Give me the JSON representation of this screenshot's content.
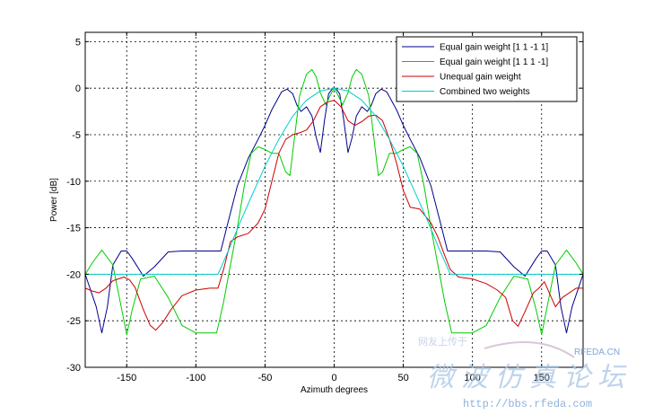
{
  "chart_data": {
    "type": "line",
    "title": "",
    "xlabel": "Azimuth degrees",
    "ylabel": "Power [dB]",
    "xlim": [
      -180,
      180
    ],
    "ylim": [
      -30,
      6
    ],
    "xticks": [
      -150,
      -100,
      -50,
      0,
      50,
      100,
      150
    ],
    "yticks": [
      5,
      0,
      -5,
      -10,
      -15,
      -20,
      -25,
      -30
    ],
    "grid": true,
    "legend_position": "top-right",
    "series": [
      {
        "name": "Equal gain weight [1 1 -1 1]",
        "color": "#00008b",
        "x": [
          -180,
          -172,
          -168,
          -164,
          -160,
          -154,
          -150,
          -146,
          -138,
          -130,
          -120,
          -110,
          -100,
          -90,
          -82,
          -76,
          -70,
          -62,
          -55,
          -50,
          -45,
          -38,
          -34,
          -30,
          -27,
          -24,
          -20,
          -16,
          -13,
          -10,
          -7,
          -4,
          -1,
          0,
          1,
          4,
          7,
          10,
          13,
          16,
          20,
          24,
          27,
          30,
          34,
          38,
          45,
          50,
          55,
          62,
          70,
          76,
          82,
          90,
          100,
          110,
          120,
          130,
          138,
          146,
          150,
          154,
          160,
          164,
          168,
          172,
          180
        ],
        "y": [
          -20,
          -23.5,
          -26.3,
          -23.5,
          -19,
          -17.5,
          -17.5,
          -18.3,
          -20.2,
          -19.2,
          -17.6,
          -17.5,
          -17.5,
          -17.5,
          -17.5,
          -14,
          -10.5,
          -7.5,
          -5.5,
          -4,
          -2.3,
          -0.4,
          -0.1,
          -0.6,
          -1.8,
          -2.5,
          -2,
          -3,
          -5.3,
          -6.9,
          -3.5,
          -0.6,
          0,
          0,
          0,
          -0.6,
          -3.5,
          -6.9,
          -5.3,
          -3,
          -2,
          -2.5,
          -1.8,
          -0.6,
          -0.1,
          -0.4,
          -2.3,
          -4,
          -5.5,
          -7.5,
          -10.5,
          -14,
          -17.5,
          -17.5,
          -17.5,
          -17.5,
          -17.6,
          -19.2,
          -20.2,
          -18.3,
          -17.5,
          -17.5,
          -19,
          -23.5,
          -26.3,
          -23.5,
          -20
        ]
      },
      {
        "name": "Equal gain weight [1 1 1 -1]",
        "color": "#00cc00",
        "x": [
          -180,
          -175,
          -168,
          -160,
          -154,
          -150,
          -146,
          -140,
          -130,
          -120,
          -110,
          -100,
          -90,
          -85,
          -80,
          -75,
          -70,
          -65,
          -60,
          -55,
          -50,
          -45,
          -40,
          -35,
          -32,
          -28,
          -25,
          -20,
          -16,
          -13,
          -10,
          -6,
          -3,
          0,
          3,
          6,
          10,
          13,
          16,
          20,
          25,
          28,
          32,
          35,
          40,
          45,
          50,
          55,
          60,
          65,
          70,
          75,
          80,
          85,
          90,
          100,
          110,
          120,
          130,
          140,
          146,
          150,
          154,
          160,
          168,
          175,
          180
        ],
        "y": [
          -20,
          -18.8,
          -17.4,
          -19,
          -23.5,
          -26.5,
          -23.8,
          -20.5,
          -20.2,
          -22.5,
          -25.5,
          -26.3,
          -26.3,
          -26.3,
          -23,
          -19,
          -15,
          -10.5,
          -7,
          -6.3,
          -6.6,
          -7,
          -7,
          -9,
          -9.4,
          -4.5,
          -0.8,
          1.5,
          2,
          1.2,
          -0.5,
          -1.8,
          -0.8,
          0,
          -0.8,
          -1.8,
          -0.5,
          1.2,
          2,
          1.5,
          -0.8,
          -4.5,
          -9.4,
          -9,
          -7,
          -7,
          -6.6,
          -6.3,
          -7,
          -10.5,
          -15,
          -19,
          -23,
          -26.3,
          -26.3,
          -26.3,
          -25.5,
          -22.5,
          -20.2,
          -20.5,
          -23.8,
          -26.5,
          -23.5,
          -19,
          -17.4,
          -18.8,
          -20
        ]
      },
      {
        "name": "Unequal gain weight",
        "color": "#cc0000",
        "x": [
          -180,
          -175,
          -170,
          -165,
          -160,
          -152,
          -148,
          -144,
          -138,
          -133,
          -129,
          -124,
          -118,
          -110,
          -100,
          -90,
          -84,
          -80,
          -75,
          -70,
          -62,
          -55,
          -50,
          -45,
          -40,
          -35,
          -30,
          -25,
          -20,
          -15,
          -10,
          -5,
          0,
          5,
          10,
          15,
          20,
          25,
          30,
          35,
          40,
          45,
          50,
          55,
          62,
          70,
          75,
          80,
          84,
          90,
          100,
          110,
          118,
          124,
          129,
          133,
          138,
          144,
          148,
          152,
          160,
          165,
          170,
          175,
          180
        ],
        "y": [
          -21.5,
          -21.8,
          -22,
          -21.5,
          -20.7,
          -20.3,
          -20.6,
          -21.4,
          -23.8,
          -25.5,
          -26,
          -25.2,
          -23.8,
          -22.3,
          -21.7,
          -21.5,
          -21.5,
          -19.5,
          -16.5,
          -16,
          -15.6,
          -14.5,
          -13,
          -10,
          -7,
          -5.5,
          -5,
          -4.8,
          -4.5,
          -3.5,
          -2,
          -1.5,
          -1.3,
          -2,
          -3.5,
          -4,
          -3.6,
          -3,
          -2.9,
          -3.5,
          -5.5,
          -8,
          -11,
          -12.8,
          -13,
          -14.5,
          -16,
          -18,
          -19.5,
          -20.3,
          -20.5,
          -21,
          -21.7,
          -22.5,
          -25,
          -25.6,
          -24,
          -22,
          -21.5,
          -20.8,
          -23.5,
          -22.5,
          -22,
          -21.5,
          -21.5
        ]
      },
      {
        "name": "Combined two weights",
        "color": "#00cccc",
        "x": [
          -180,
          -100,
          -84,
          -76,
          -68,
          -60,
          -50,
          -40,
          -30,
          -20,
          -10,
          0,
          10,
          20,
          30,
          40,
          50,
          60,
          68,
          76,
          84,
          100,
          180
        ],
        "y": [
          -20,
          -20,
          -20,
          -17.3,
          -14.4,
          -11.7,
          -8.4,
          -5.5,
          -3,
          -1.3,
          -0.3,
          0,
          -0.3,
          -1.3,
          -3,
          -5.5,
          -8.4,
          -11.7,
          -14.4,
          -17.3,
          -20,
          -20,
          -20
        ]
      }
    ]
  },
  "watermark": {
    "line1": "网友上传于",
    "site_tag": "RFEDA.CN",
    "line2": "微波仿真论坛",
    "url": "http://bbs.rfeda.com"
  }
}
